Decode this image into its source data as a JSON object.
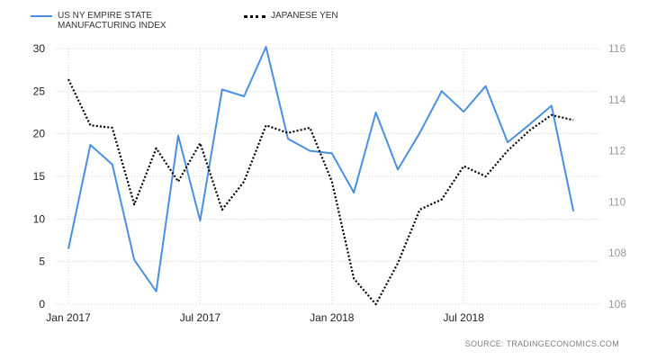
{
  "legend": {
    "series1_label": "US NY EMPIRE STATE MANUFACTURING INDEX",
    "series2_label": "JAPANESE YEN"
  },
  "source": "SOURCE: TRADINGECONOMICS.COM",
  "chart_data": {
    "type": "line",
    "x": [
      "2017-01",
      "2017-02",
      "2017-03",
      "2017-04",
      "2017-05",
      "2017-06",
      "2017-07",
      "2017-08",
      "2017-09",
      "2017-10",
      "2017-11",
      "2017-12",
      "2018-01",
      "2018-02",
      "2018-03",
      "2018-04",
      "2018-05",
      "2018-06",
      "2018-07",
      "2018-08",
      "2018-09",
      "2018-10",
      "2018-11",
      "2018-12"
    ],
    "x_tick_labels": [
      {
        "x": "2017-01",
        "label": "Jan 2017"
      },
      {
        "x": "2017-07",
        "label": "Jul 2017"
      },
      {
        "x": "2018-01",
        "label": "Jan 2018"
      },
      {
        "x": "2018-07",
        "label": "Jul 2018"
      }
    ],
    "grid": true,
    "legend_position": "top-left",
    "series": [
      {
        "name": "US NY EMPIRE STATE MANUFACTURING INDEX",
        "axis": "left",
        "color": "#4a90e2",
        "style": "solid",
        "values": [
          6.5,
          18.7,
          16.4,
          5.2,
          1.5,
          19.8,
          9.8,
          25.2,
          24.4,
          30.2,
          19.4,
          18.0,
          17.7,
          13.1,
          22.5,
          15.8,
          20.1,
          25.0,
          22.6,
          25.6,
          19.0,
          21.1,
          23.3,
          10.9
        ]
      },
      {
        "name": "JAPANESE YEN",
        "axis": "right",
        "color": "#000000",
        "style": "dotted",
        "values": [
          114.8,
          113.0,
          112.9,
          109.9,
          112.1,
          110.8,
          112.3,
          109.7,
          110.8,
          113.0,
          112.7,
          112.9,
          110.8,
          107.0,
          106.0,
          107.6,
          109.7,
          110.1,
          111.4,
          111.0,
          112.0,
          112.8,
          113.4,
          113.2
        ]
      }
    ],
    "y_left": {
      "ylim": [
        0,
        30
      ],
      "ticks": [
        0,
        5,
        10,
        15,
        20,
        25,
        30
      ]
    },
    "y_right": {
      "ylim": [
        106,
        116
      ],
      "ticks": [
        106,
        108,
        110,
        112,
        114,
        116
      ]
    }
  }
}
